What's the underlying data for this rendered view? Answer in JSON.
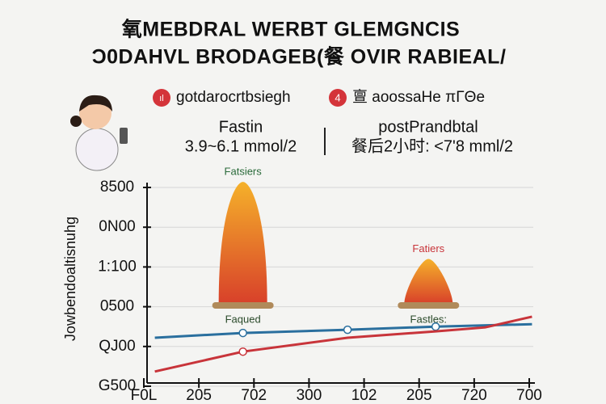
{
  "title": "氧MEBDRAL WERBT GLEMGNCIS",
  "subtitle": "Ɔ0DAHVL BRODAGEB(餐 OVIR RABIEAL/",
  "legend": [
    {
      "icon": "ıl",
      "label": "gotdarocrtbsiegh"
    },
    {
      "icon": "4",
      "label": "亶 aoossaHe πΓΘe"
    }
  ],
  "info": [
    {
      "title": "Fastin",
      "range": "3.9~6.1 mmol/2"
    },
    {
      "title": "postPrandbtal",
      "range": "餐后2小时: <7'8 mml/2"
    }
  ],
  "chart_data": {
    "type": "line",
    "y_label": "Jowbendoaltisnuhg",
    "xlim": [
      0,
      7
    ],
    "ylim": [
      0,
      5
    ],
    "xticks": [
      {
        "value": 0,
        "label": "F0L"
      },
      {
        "value": 1,
        "label": "205"
      },
      {
        "value": 2,
        "label": "702"
      },
      {
        "value": 3,
        "label": "300"
      },
      {
        "value": 4,
        "label": "102"
      },
      {
        "value": 5,
        "label": "205"
      },
      {
        "value": 6,
        "label": "720"
      },
      {
        "value": 7,
        "label": "700"
      }
    ],
    "yticks": [
      {
        "value": 0,
        "label": "G500"
      },
      {
        "value": 1,
        "label": "QJ00"
      },
      {
        "value": 2,
        "label": "0500"
      },
      {
        "value": 3,
        "label": "1:100"
      },
      {
        "value": 4,
        "label": "0N00"
      },
      {
        "value": 5,
        "label": "8500"
      }
    ],
    "grid": true,
    "series": [
      {
        "color": "#2a6f9e",
        "x": [
          0.2,
          1.8,
          3.7,
          5.3,
          7.05
        ],
        "values": [
          1.22,
          1.34,
          1.42,
          1.5,
          1.56
        ],
        "markers": [
          false,
          true,
          true,
          true,
          false
        ]
      },
      {
        "color": "#c8343a",
        "x": [
          0.2,
          1.8,
          3.7,
          5.3,
          6.2,
          7.05
        ],
        "values": [
          0.37,
          0.87,
          1.22,
          1.38,
          1.48,
          1.75
        ],
        "markers": [
          false,
          true,
          false,
          false,
          false,
          false
        ]
      }
    ],
    "peaks": [
      {
        "x": 1.8,
        "value": 5.14,
        "top_label": "Fatsiers",
        "base_label": "Faqued"
      },
      {
        "x": 5.17,
        "value": 3.2,
        "top_label": "Fatiers",
        "base_label": "Fastles:"
      }
    ]
  }
}
